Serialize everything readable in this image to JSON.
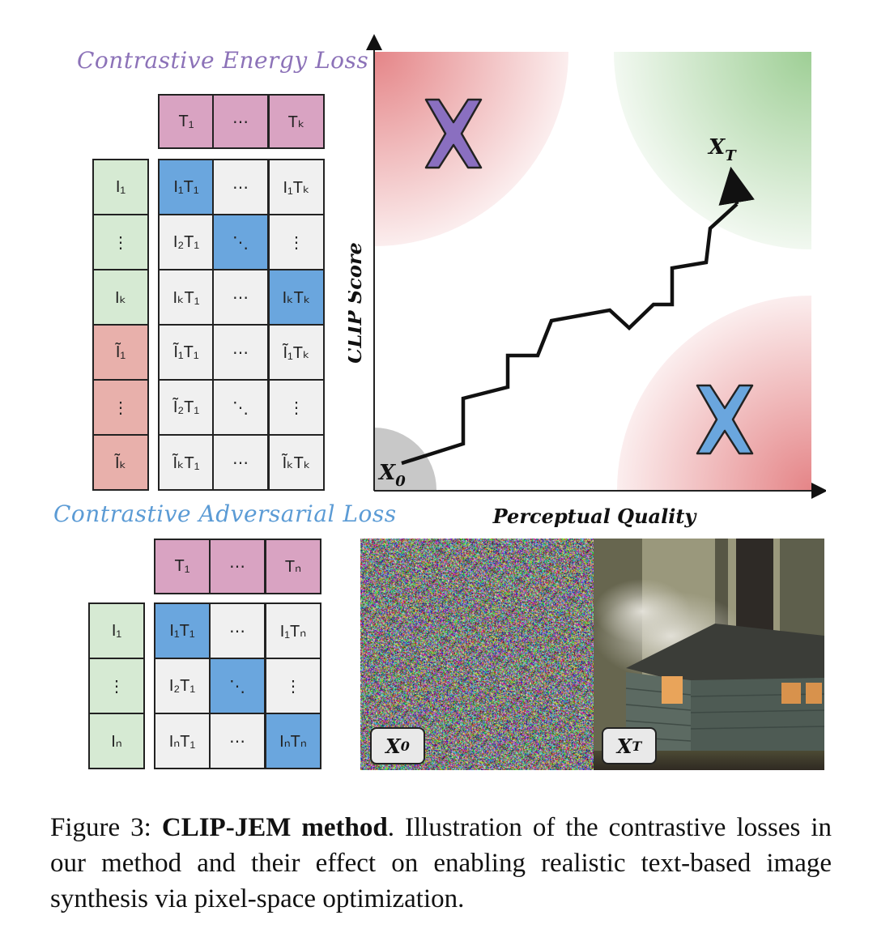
{
  "energy": {
    "title": "Contrastive Energy Loss",
    "title_color": "#8c72b8",
    "header": [
      "T₁",
      "⋯",
      "Tₖ"
    ],
    "rows": [
      {
        "label": "I₁",
        "label_color": "green",
        "cells": [
          "I₁T₁",
          "⋯",
          "I₁Tₖ"
        ],
        "diag": 0
      },
      {
        "label": "⋮",
        "label_color": "green",
        "cells": [
          "I₂T₁",
          "⋱",
          "⋮"
        ],
        "diag": 1
      },
      {
        "label": "Iₖ",
        "label_color": "green",
        "cells": [
          "IₖT₁",
          "⋯",
          "IₖTₖ"
        ],
        "diag": 2
      },
      {
        "label": "Ĩ₁",
        "label_color": "red",
        "cells": [
          "Ĩ₁T₁",
          "⋯",
          "Ĩ₁Tₖ"
        ],
        "diag": -1
      },
      {
        "label": "⋮",
        "label_color": "red",
        "cells": [
          "Ĩ₂T₁",
          "⋱",
          "⋮"
        ],
        "diag": -1
      },
      {
        "label": "Ĩₖ",
        "label_color": "red",
        "cells": [
          "ĨₖT₁",
          "⋯",
          "ĨₖTₖ"
        ],
        "diag": -1
      }
    ]
  },
  "adversarial": {
    "title": "Contrastive Adversarial Loss",
    "title_color": "#5b9bd5",
    "header": [
      "T₁",
      "⋯",
      "Tₙ"
    ],
    "rows": [
      {
        "label": "I₁",
        "label_color": "green",
        "cells": [
          "I₁T₁",
          "⋯",
          "I₁Tₙ"
        ],
        "diag": 0
      },
      {
        "label": "⋮",
        "label_color": "green",
        "cells": [
          "I₂T₁",
          "⋱",
          "⋮"
        ],
        "diag": 1
      },
      {
        "label": "Iₙ",
        "label_color": "green",
        "cells": [
          "IₙT₁",
          "⋯",
          "IₙTₙ"
        ],
        "diag": 2
      }
    ]
  },
  "plot": {
    "ylabel": "CLIP Score",
    "xlabel": "Perceptual Quality",
    "start_label": "X",
    "start_sub": "0",
    "end_label": "X",
    "end_sub": "T",
    "colors": {
      "bad": "#e06f72",
      "good": "#93c989",
      "cross_purple": "#8a6fc0",
      "cross_blue": "#6aa6de",
      "start_region": "#c8c8c8"
    }
  },
  "images": {
    "noise_label": "X",
    "noise_sub": "0",
    "result_label": "X",
    "result_sub": "T"
  },
  "caption": {
    "prefix": "Figure 3: ",
    "bold": "CLIP-JEM method",
    "rest": ". Illustration of the contrastive losses in our method and their effect on enabling realistic text-based image synthesis via pixel-space optimization."
  }
}
